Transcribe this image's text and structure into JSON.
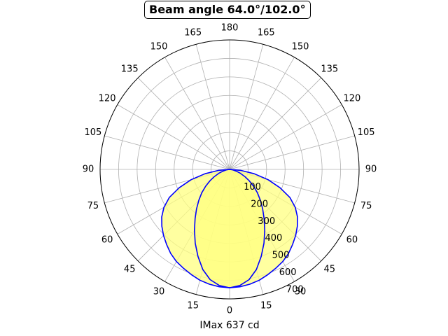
{
  "chart_data": {
    "type": "polar",
    "title": "Beam angle 64.0°/102.0°",
    "xlabel": "IMax 637 cd",
    "angle_ticks_left": [
      "0",
      "15",
      "30",
      "45",
      "60",
      "75",
      "90",
      "105",
      "120",
      "135",
      "150",
      "165",
      "180"
    ],
    "angle_ticks_right": [
      "15",
      "30",
      "45",
      "60",
      "75",
      "90",
      "105",
      "120",
      "135",
      "150",
      "165"
    ],
    "radial_ticks": [
      "100",
      "200",
      "300",
      "400",
      "500",
      "600",
      "700"
    ],
    "radial_values": [
      100,
      200,
      300,
      400,
      500,
      600,
      700
    ],
    "rlim": [
      0,
      700
    ],
    "grid": true,
    "angle_unit": "degrees",
    "zero_direction": "bottom",
    "fill_color": "#ffff80",
    "line_color": "#0000ff",
    "series": [
      {
        "angles": [
          0,
          5,
          10,
          15,
          20,
          25,
          30,
          35,
          40,
          45,
          50,
          55,
          60,
          65,
          70,
          75,
          80,
          85,
          90
        ],
        "values": [
          640,
          637,
          630,
          620,
          605,
          590,
          575,
          555,
          530,
          505,
          478,
          448,
          410,
          360,
          290,
          215,
          135,
          60,
          0
        ]
      },
      {
        "angles": [
          0,
          5,
          10,
          15,
          20,
          25,
          30,
          35,
          40,
          45,
          50,
          55,
          60,
          65,
          70,
          75,
          80,
          85,
          90
        ],
        "values": [
          640,
          630,
          605,
          560,
          500,
          440,
          380,
          325,
          278,
          235,
          196,
          158,
          122,
          90,
          62,
          38,
          20,
          8,
          0
        ]
      }
    ]
  }
}
